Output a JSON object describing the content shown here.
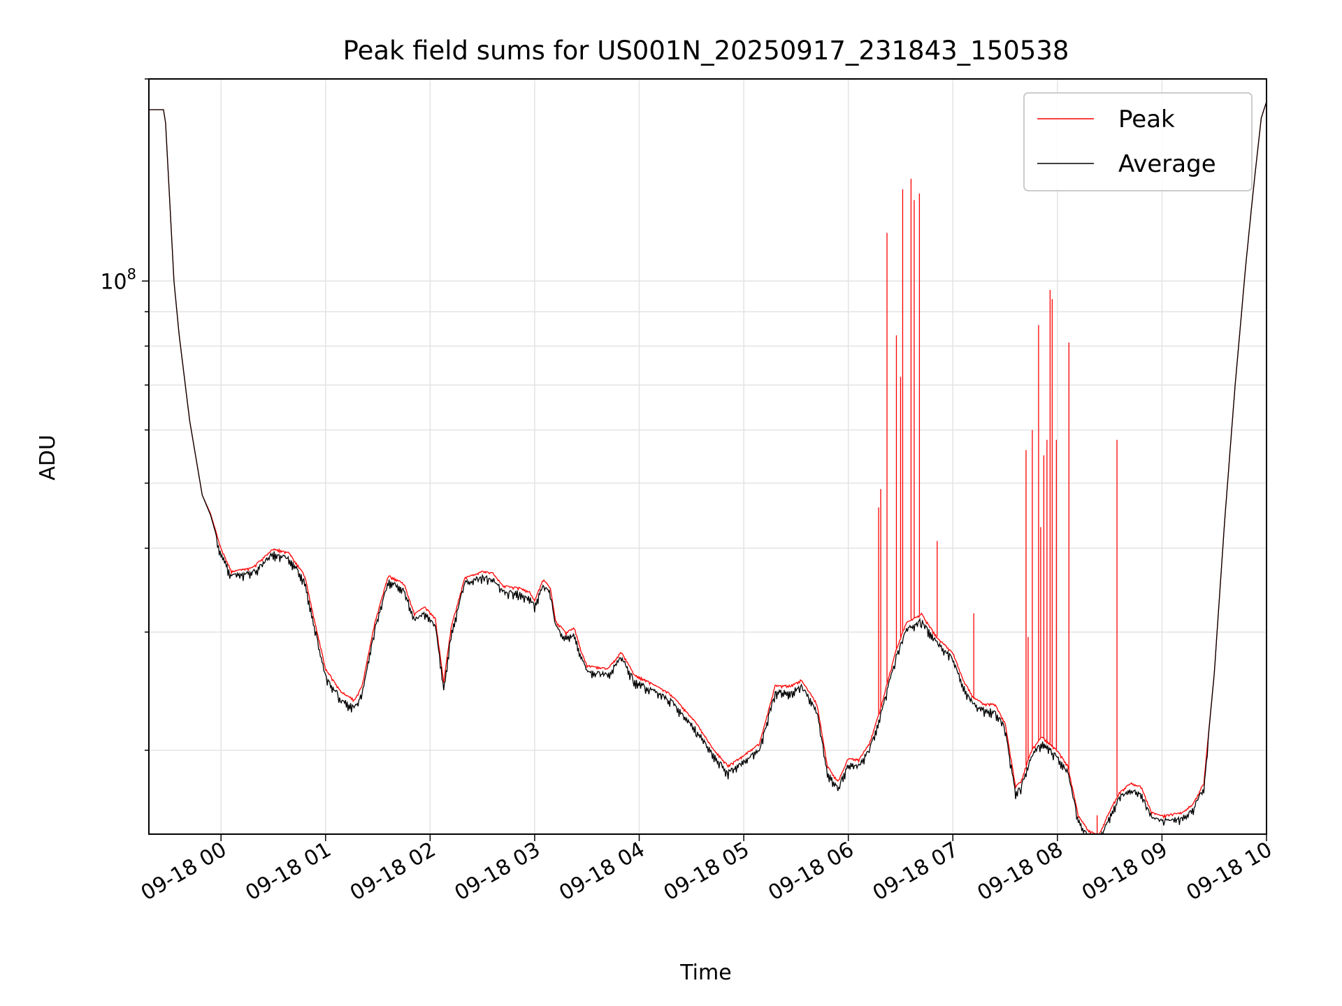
{
  "chart_data": {
    "type": "line",
    "title": "Peak field sums for US001N_20250917_231843_150538",
    "xlabel": "Time",
    "ylabel": "ADU",
    "yscale": "log",
    "ylim": [
      15000000,
      200000000
    ],
    "xlim": [
      "2025-09-17T23:18:43",
      "2025-09-18T10:00:00"
    ],
    "x_ticks": [
      "09-18 00",
      "09-18 01",
      "09-18 02",
      "09-18 03",
      "09-18 04",
      "09-18 05",
      "09-18 06",
      "09-18 07",
      "09-18 08",
      "09-18 09",
      "09-18 10"
    ],
    "y_ticks": [
      {
        "label": "10",
        "exponent": "8",
        "value": 100000000
      }
    ],
    "grid": true,
    "legend": {
      "position": "top-right",
      "entries": [
        "Peak",
        "Average"
      ]
    },
    "colors": {
      "Peak": "#ff0000",
      "Average": "#000000"
    },
    "x_format": "time of day (hours) on 09-18; negative values fall on 09-17",
    "series": [
      {
        "name": "Peak",
        "points": [
          [
            -0.69,
            180000000
          ],
          [
            -0.55,
            180000000
          ],
          [
            -0.53,
            172000000
          ],
          [
            -0.45,
            100000000
          ],
          [
            -0.4,
            83000000
          ],
          [
            -0.3,
            62000000
          ],
          [
            -0.18,
            48000000
          ],
          [
            -0.1,
            45000000
          ],
          [
            0.0,
            40000000
          ],
          [
            0.1,
            37000000
          ],
          [
            0.3,
            37500000
          ],
          [
            0.5,
            40000000
          ],
          [
            0.65,
            39500000
          ],
          [
            0.8,
            36500000
          ],
          [
            0.9,
            31000000
          ],
          [
            1.0,
            26500000
          ],
          [
            1.15,
            24500000
          ],
          [
            1.28,
            23800000
          ],
          [
            1.35,
            25000000
          ],
          [
            1.47,
            31000000
          ],
          [
            1.6,
            36500000
          ],
          [
            1.75,
            35500000
          ],
          [
            1.85,
            32000000
          ],
          [
            1.95,
            32800000
          ],
          [
            2.05,
            31500000
          ],
          [
            2.13,
            25300000
          ],
          [
            2.2,
            30500000
          ],
          [
            2.33,
            36200000
          ],
          [
            2.5,
            37000000
          ],
          [
            2.6,
            36800000
          ],
          [
            2.7,
            35200000
          ],
          [
            2.85,
            35000000
          ],
          [
            2.95,
            34500000
          ],
          [
            3.0,
            33500000
          ],
          [
            3.08,
            36000000
          ],
          [
            3.15,
            35000000
          ],
          [
            3.2,
            31200000
          ],
          [
            3.3,
            30000000
          ],
          [
            3.38,
            30500000
          ],
          [
            3.45,
            28000000
          ],
          [
            3.5,
            26800000
          ],
          [
            3.7,
            26500000
          ],
          [
            3.83,
            28100000
          ],
          [
            3.95,
            26000000
          ],
          [
            4.1,
            25300000
          ],
          [
            4.3,
            24300000
          ],
          [
            4.55,
            22000000
          ],
          [
            4.7,
            20200000
          ],
          [
            4.85,
            19000000
          ],
          [
            5.0,
            19700000
          ],
          [
            5.15,
            20500000
          ],
          [
            5.3,
            25000000
          ],
          [
            5.45,
            25000000
          ],
          [
            5.55,
            25500000
          ],
          [
            5.7,
            23500000
          ],
          [
            5.8,
            19000000
          ],
          [
            5.9,
            18000000
          ],
          [
            6.0,
            19500000
          ],
          [
            6.1,
            19400000
          ],
          [
            6.2,
            20500000
          ],
          [
            6.3,
            22900000
          ],
          [
            6.45,
            28000000
          ],
          [
            6.55,
            31000000
          ],
          [
            6.7,
            32000000
          ],
          [
            6.85,
            29500000
          ],
          [
            7.0,
            28000000
          ],
          [
            7.1,
            25500000
          ],
          [
            7.2,
            24000000
          ],
          [
            7.3,
            23500000
          ],
          [
            7.4,
            23500000
          ],
          [
            7.5,
            22000000
          ],
          [
            7.6,
            17700000
          ],
          [
            7.65,
            18000000
          ],
          [
            7.75,
            20000000
          ],
          [
            7.85,
            21000000
          ],
          [
            8.0,
            20000000
          ],
          [
            8.1,
            19000000
          ],
          [
            8.2,
            16000000
          ],
          [
            8.3,
            15200000
          ],
          [
            8.4,
            15000000
          ],
          [
            8.5,
            16300000
          ],
          [
            8.6,
            17400000
          ],
          [
            8.7,
            17900000
          ],
          [
            8.8,
            17700000
          ],
          [
            8.9,
            16200000
          ],
          [
            9.0,
            16000000
          ],
          [
            9.1,
            16100000
          ],
          [
            9.2,
            16200000
          ],
          [
            9.3,
            16700000
          ],
          [
            9.4,
            17900000
          ],
          [
            9.5,
            26000000
          ],
          [
            9.6,
            44000000
          ],
          [
            9.7,
            70000000
          ],
          [
            9.8,
            105000000
          ],
          [
            9.87,
            135000000
          ],
          [
            9.95,
            175000000
          ],
          [
            10.0,
            185000000
          ]
        ]
      },
      {
        "name": "Average",
        "points": [
          [
            -0.69,
            180000000
          ],
          [
            -0.55,
            180000000
          ],
          [
            -0.53,
            172000000
          ],
          [
            -0.45,
            100000000
          ],
          [
            -0.4,
            83000000
          ],
          [
            -0.3,
            62000000
          ],
          [
            -0.18,
            48000000
          ],
          [
            -0.1,
            44800000
          ],
          [
            0.0,
            39500000
          ],
          [
            0.1,
            36700000
          ],
          [
            0.3,
            37000000
          ],
          [
            0.5,
            39600000
          ],
          [
            0.65,
            39000000
          ],
          [
            0.8,
            36000000
          ],
          [
            0.9,
            30500000
          ],
          [
            1.0,
            26000000
          ],
          [
            1.15,
            24000000
          ],
          [
            1.28,
            23300000
          ],
          [
            1.35,
            24500000
          ],
          [
            1.47,
            30500000
          ],
          [
            1.6,
            36000000
          ],
          [
            1.75,
            35000000
          ],
          [
            1.85,
            31500000
          ],
          [
            1.95,
            32300000
          ],
          [
            2.05,
            31000000
          ],
          [
            2.13,
            25000000
          ],
          [
            2.2,
            30000000
          ],
          [
            2.33,
            35800000
          ],
          [
            2.5,
            36500000
          ],
          [
            2.6,
            36300000
          ],
          [
            2.7,
            34700000
          ],
          [
            2.85,
            34600000
          ],
          [
            2.95,
            34000000
          ],
          [
            3.0,
            33000000
          ],
          [
            3.08,
            35500000
          ],
          [
            3.15,
            34500000
          ],
          [
            3.2,
            30800000
          ],
          [
            3.3,
            29600000
          ],
          [
            3.38,
            30000000
          ],
          [
            3.45,
            27600000
          ],
          [
            3.5,
            26400000
          ],
          [
            3.7,
            26100000
          ],
          [
            3.83,
            27700000
          ],
          [
            3.95,
            25600000
          ],
          [
            4.1,
            24900000
          ],
          [
            4.3,
            23900000
          ],
          [
            4.55,
            21600000
          ],
          [
            4.7,
            19900000
          ],
          [
            4.85,
            18700000
          ],
          [
            5.0,
            19400000
          ],
          [
            5.15,
            20200000
          ],
          [
            5.3,
            24600000
          ],
          [
            5.45,
            24600000
          ],
          [
            5.55,
            25100000
          ],
          [
            5.7,
            23100000
          ],
          [
            5.8,
            18700000
          ],
          [
            5.9,
            17700000
          ],
          [
            6.0,
            19200000
          ],
          [
            6.1,
            19100000
          ],
          [
            6.2,
            20200000
          ],
          [
            6.3,
            22500000
          ],
          [
            6.45,
            27600000
          ],
          [
            6.55,
            30500000
          ],
          [
            6.7,
            31500000
          ],
          [
            6.85,
            29100000
          ],
          [
            7.0,
            27600000
          ],
          [
            7.1,
            25100000
          ],
          [
            7.2,
            23600000
          ],
          [
            7.3,
            23100000
          ],
          [
            7.4,
            23100000
          ],
          [
            7.5,
            21700000
          ],
          [
            7.6,
            17400000
          ],
          [
            7.65,
            17700000
          ],
          [
            7.75,
            19700000
          ],
          [
            7.85,
            20700000
          ],
          [
            8.0,
            19700000
          ],
          [
            8.1,
            18700000
          ],
          [
            8.2,
            15800000
          ],
          [
            8.3,
            15000000
          ],
          [
            8.4,
            14800000
          ],
          [
            8.5,
            16100000
          ],
          [
            8.6,
            17200000
          ],
          [
            8.7,
            17600000
          ],
          [
            8.8,
            17400000
          ],
          [
            8.9,
            16000000
          ],
          [
            9.0,
            15800000
          ],
          [
            9.1,
            15900000
          ],
          [
            9.2,
            16000000
          ],
          [
            9.3,
            16500000
          ],
          [
            9.4,
            17700000
          ],
          [
            9.5,
            26000000
          ],
          [
            9.6,
            44000000
          ],
          [
            9.7,
            70000000
          ],
          [
            9.8,
            105000000
          ],
          [
            9.87,
            135000000
          ],
          [
            9.95,
            175000000
          ],
          [
            10.0,
            185000000
          ]
        ]
      }
    ],
    "peak_spikes": [
      [
        6.29,
        46000000
      ],
      [
        6.31,
        49000000
      ],
      [
        6.37,
        118000000
      ],
      [
        6.46,
        83000000
      ],
      [
        6.5,
        72000000
      ],
      [
        6.52,
        137000000
      ],
      [
        6.6,
        142000000
      ],
      [
        6.63,
        132000000
      ],
      [
        6.68,
        135000000
      ],
      [
        6.85,
        41000000
      ],
      [
        7.2,
        32000000
      ],
      [
        7.7,
        56000000
      ],
      [
        7.72,
        29500000
      ],
      [
        7.76,
        60000000
      ],
      [
        7.82,
        86000000
      ],
      [
        7.84,
        43000000
      ],
      [
        7.87,
        55000000
      ],
      [
        7.9,
        58000000
      ],
      [
        7.93,
        97000000
      ],
      [
        7.95,
        94000000
      ],
      [
        7.99,
        58000000
      ],
      [
        8.11,
        81000000
      ],
      [
        8.38,
        16000000
      ],
      [
        8.57,
        58000000
      ]
    ]
  }
}
